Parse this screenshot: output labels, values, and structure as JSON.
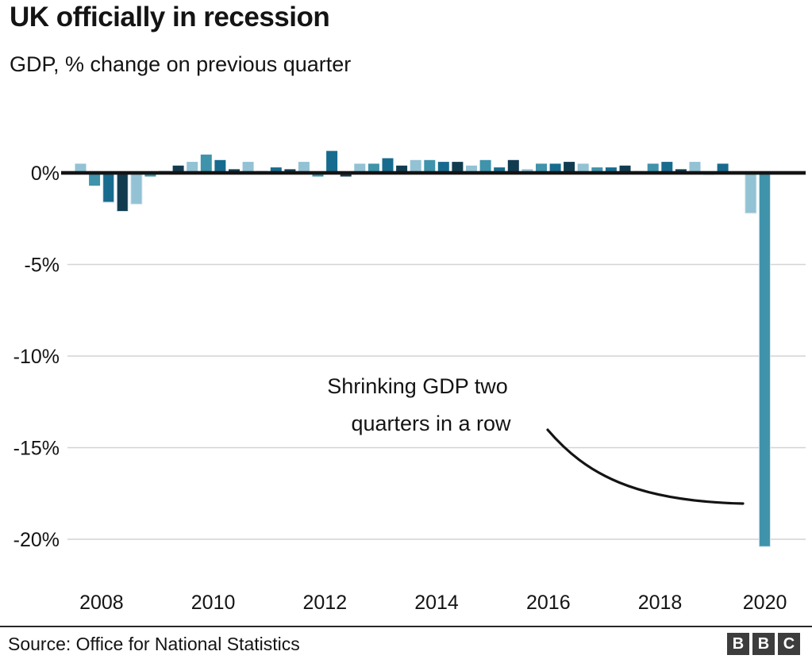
{
  "header": {
    "title": "UK officially in recession",
    "subtitle": "GDP, % change on previous quarter"
  },
  "chart_data": {
    "type": "bar",
    "title": "UK officially in recession",
    "subtitle": "GDP, % change on previous quarter",
    "x": [
      "2008 Q1",
      "2008 Q2",
      "2008 Q3",
      "2008 Q4",
      "2009 Q1",
      "2009 Q2",
      "2009 Q3",
      "2009 Q4",
      "2010 Q1",
      "2010 Q2",
      "2010 Q3",
      "2010 Q4",
      "2011 Q1",
      "2011 Q2",
      "2011 Q3",
      "2011 Q4",
      "2012 Q1",
      "2012 Q2",
      "2012 Q3",
      "2012 Q4",
      "2013 Q1",
      "2013 Q2",
      "2013 Q3",
      "2013 Q4",
      "2014 Q1",
      "2014 Q2",
      "2014 Q3",
      "2014 Q4",
      "2015 Q1",
      "2015 Q2",
      "2015 Q3",
      "2015 Q4",
      "2016 Q1",
      "2016 Q2",
      "2016 Q3",
      "2016 Q4",
      "2017 Q1",
      "2017 Q2",
      "2017 Q3",
      "2017 Q4",
      "2018 Q1",
      "2018 Q2",
      "2018 Q3",
      "2018 Q4",
      "2019 Q1",
      "2019 Q2",
      "2019 Q3",
      "2019 Q4",
      "2020 Q1",
      "2020 Q2"
    ],
    "values": [
      0.5,
      -0.7,
      -1.6,
      -2.1,
      -1.7,
      -0.2,
      0.1,
      0.4,
      0.6,
      1.0,
      0.7,
      0.2,
      0.6,
      0.1,
      0.3,
      0.2,
      0.6,
      -0.2,
      1.2,
      -0.2,
      0.5,
      0.5,
      0.8,
      0.4,
      0.7,
      0.7,
      0.6,
      0.6,
      0.4,
      0.7,
      0.3,
      0.7,
      0.2,
      0.5,
      0.5,
      0.6,
      0.5,
      0.3,
      0.3,
      0.4,
      0.1,
      0.5,
      0.6,
      0.2,
      0.6,
      -0.1,
      0.5,
      0.0,
      -2.2,
      -20.4
    ],
    "ylim": [
      -21.5,
      1.6
    ],
    "yticks": {
      "labels": [
        "0%",
        "-5%",
        "-10%",
        "-15%",
        "-20%"
      ],
      "values": [
        0,
        -5,
        -10,
        -15,
        -20
      ]
    },
    "year_labels": [
      "2008",
      "2010",
      "2012",
      "2014",
      "2016",
      "2018",
      "2020"
    ],
    "quarter_colors": [
      "#92c2d4",
      "#3f93ab",
      "#176b8e",
      "#113c4f"
    ],
    "colors": {
      "grid": "#d4d4d4",
      "axis": "#141414",
      "text": "#141414",
      "bar_outline": "#cfe2eb"
    },
    "grid": "horizontal-only",
    "legend": "none",
    "annotation": {
      "text": [
        "Shrinking GDP two",
        "quarters in a row"
      ]
    }
  },
  "footer": {
    "source": "Source: Office for National Statistics",
    "logo_letters": [
      "B",
      "B",
      "C"
    ]
  }
}
